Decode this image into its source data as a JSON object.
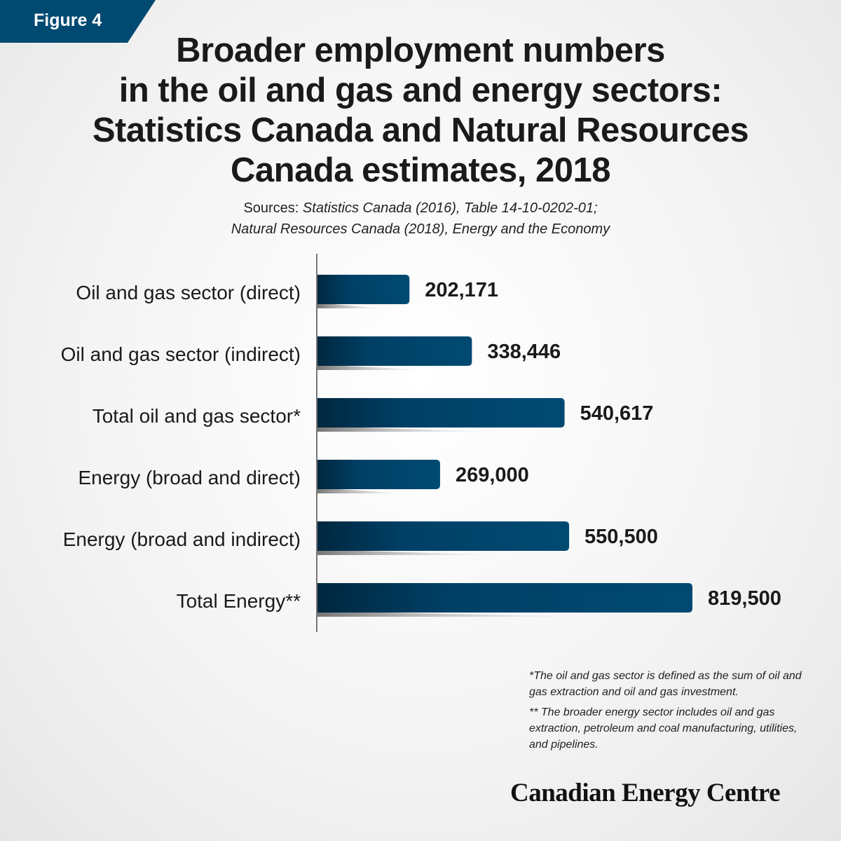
{
  "badge": {
    "label": "Figure 4",
    "color": "#004a72"
  },
  "title_lines": [
    "Broader employment numbers",
    "in the oil and gas and energy sectors:",
    "Statistics Canada and Natural Resources",
    "Canada estimates, 2018"
  ],
  "sources": {
    "prefix": "Sources: ",
    "line1": "Statistics Canada (2016), Table 14-10-0202-01;",
    "line2": "Natural Resources Canada (2018), Energy and the Economy"
  },
  "chart_data": {
    "type": "bar",
    "orientation": "horizontal",
    "categories": [
      "Oil and gas sector (direct)",
      "Oil and gas sector (indirect)",
      "Total oil and gas sector*",
      "Energy (broad and direct)",
      "Energy (broad and indirect)",
      "Total Energy**"
    ],
    "values": [
      202171,
      338446,
      540617,
      269000,
      550500,
      819500
    ],
    "data_labels": [
      "202,171",
      "338,446",
      "540,617",
      "269,000",
      "550,500",
      "819,500"
    ],
    "xlim": [
      0,
      819500
    ],
    "grid": false,
    "bar_color": "#004a72",
    "bar_color_dark": "#00273f"
  },
  "notes": [
    "*The oil and gas sector is defined as the sum of oil and gas extraction and oil and gas investment.",
    "** The broader energy sector includes oil and gas extraction, petroleum and coal manufacturing, utilities, and pipelines."
  ],
  "logo": "Canadian Energy Centre"
}
